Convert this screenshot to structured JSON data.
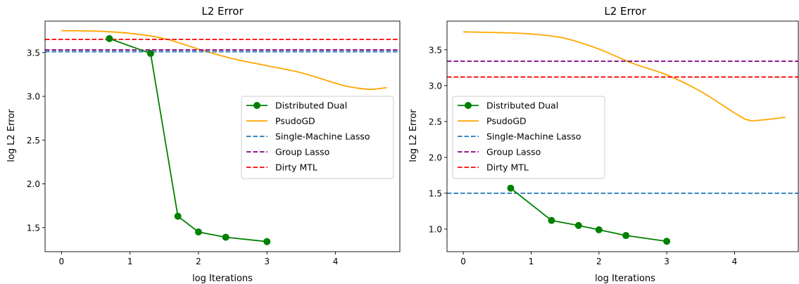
{
  "chart_data": [
    {
      "type": "line",
      "title": "L2 Error",
      "xlabel": "log Iterations",
      "ylabel": "log L2 Error",
      "xlim": [
        -0.24,
        4.94
      ],
      "ylim": [
        1.225,
        3.86
      ],
      "xticks": [
        0,
        1,
        2,
        3,
        4
      ],
      "xtick_labels": [
        "0",
        "1",
        "2",
        "3",
        "4"
      ],
      "yticks": [
        1.5,
        2.0,
        2.5,
        3.0,
        3.5
      ],
      "ytick_labels": [
        "1.5",
        "2.0",
        "2.5",
        "3.0",
        "3.5"
      ],
      "grid": false,
      "legend_position": "center-right",
      "series": [
        {
          "name": "Distributed Dual",
          "kind": "line-marker",
          "color": "#008000",
          "x": [
            0.699,
            1.301,
            1.699,
            2.0,
            2.398,
            3.0
          ],
          "y": [
            3.66,
            3.49,
            1.63,
            1.45,
            1.39,
            1.34
          ]
        },
        {
          "name": "PsudoGD",
          "kind": "line",
          "color": "#ffa500",
          "x": [
            0,
            0.5,
            1.0,
            1.5,
            2.0,
            2.5,
            3.0,
            3.5,
            4.0,
            4.2,
            4.5,
            4.75
          ],
          "y": [
            3.75,
            3.745,
            3.72,
            3.66,
            3.54,
            3.43,
            3.35,
            3.27,
            3.15,
            3.11,
            3.08,
            3.1
          ]
        },
        {
          "name": "Single-Machine Lasso",
          "kind": "hline",
          "color": "#1f77b4",
          "y": 3.51
        },
        {
          "name": "Group Lasso",
          "kind": "hline",
          "color": "#800080",
          "y": 3.53
        },
        {
          "name": "Dirty MTL",
          "kind": "hline",
          "color": "#ff0000",
          "y": 3.65
        }
      ],
      "legend": [
        "Distributed Dual",
        "PsudoGD",
        "Single-Machine Lasso",
        "Group Lasso",
        "Dirty MTL"
      ]
    },
    {
      "type": "line",
      "title": "L2 Error",
      "xlabel": "log Iterations",
      "ylabel": "log L2 Error",
      "xlim": [
        -0.24,
        4.94
      ],
      "ylim": [
        0.685,
        3.9
      ],
      "xticks": [
        0,
        1,
        2,
        3,
        4
      ],
      "xtick_labels": [
        "0",
        "1",
        "2",
        "3",
        "4"
      ],
      "yticks": [
        1.0,
        1.5,
        2.0,
        2.5,
        3.0,
        3.5
      ],
      "ytick_labels": [
        "1.0",
        "1.5",
        "2.0",
        "2.5",
        "3.0",
        "3.5"
      ],
      "grid": false,
      "legend_position": "center-left",
      "series": [
        {
          "name": "Distributed Dual",
          "kind": "line-marker",
          "color": "#008000",
          "x": [
            0.699,
            1.301,
            1.699,
            2.0,
            2.398,
            3.0
          ],
          "y": [
            1.57,
            1.12,
            1.05,
            0.99,
            0.91,
            0.83
          ]
        },
        {
          "name": "PsudoGD",
          "kind": "line",
          "color": "#ffa500",
          "x": [
            0,
            0.5,
            1.0,
            1.5,
            2.0,
            2.5,
            3.0,
            3.5,
            4.0,
            4.2,
            4.4,
            4.75
          ],
          "y": [
            3.75,
            3.74,
            3.72,
            3.66,
            3.51,
            3.31,
            3.15,
            2.92,
            2.62,
            2.52,
            2.52,
            2.56
          ]
        },
        {
          "name": "Single-Machine Lasso",
          "kind": "hline",
          "color": "#1f77b4",
          "y": 1.5
        },
        {
          "name": "Group Lasso",
          "kind": "hline",
          "color": "#800080",
          "y": 3.34
        },
        {
          "name": "Dirty MTL",
          "kind": "hline",
          "color": "#ff0000",
          "y": 3.12
        }
      ],
      "legend": [
        "Distributed Dual",
        "PsudoGD",
        "Single-Machine Lasso",
        "Group Lasso",
        "Dirty MTL"
      ]
    }
  ]
}
